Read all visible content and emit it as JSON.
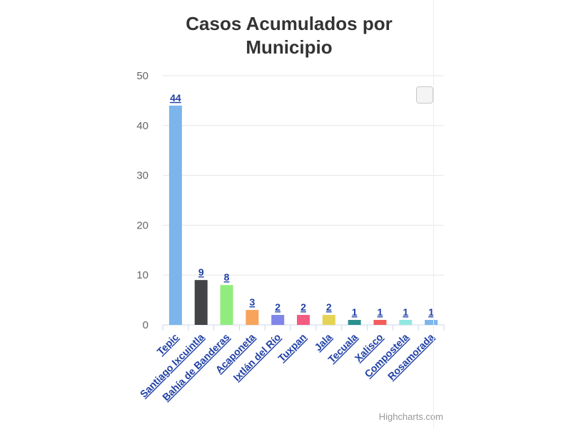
{
  "chart_data": {
    "type": "bar",
    "title_lines": [
      "Casos Acumulados por",
      "Municipio"
    ],
    "categories": [
      "Tepic",
      "Santiago Ixcuintla",
      "Bahía de Banderas",
      "Acaponeta",
      "Ixtlán del Río",
      "Tuxpan",
      "Jala",
      "Tecuala",
      "Xalisco",
      "Compostela",
      "Rosamorada"
    ],
    "values": [
      44,
      9,
      8,
      3,
      2,
      2,
      2,
      1,
      1,
      1,
      1
    ],
    "colors": [
      "#7cb5ec",
      "#434348",
      "#90ed7d",
      "#f7a35c",
      "#8085e9",
      "#f15c80",
      "#e4d354",
      "#2b908f",
      "#f45b5b",
      "#91e8e1",
      "#7cb5ec"
    ],
    "ylim": [
      0,
      50
    ],
    "yticks": [
      0,
      10,
      20,
      30,
      40,
      50
    ],
    "grid": true,
    "data_labels": true,
    "legend": "none"
  },
  "credits": "Highcharts.com",
  "colors": {
    "grid": "#e6e6e6",
    "axis": "#ccd6eb",
    "label": "#1f3fa6",
    "title": "#333333"
  }
}
